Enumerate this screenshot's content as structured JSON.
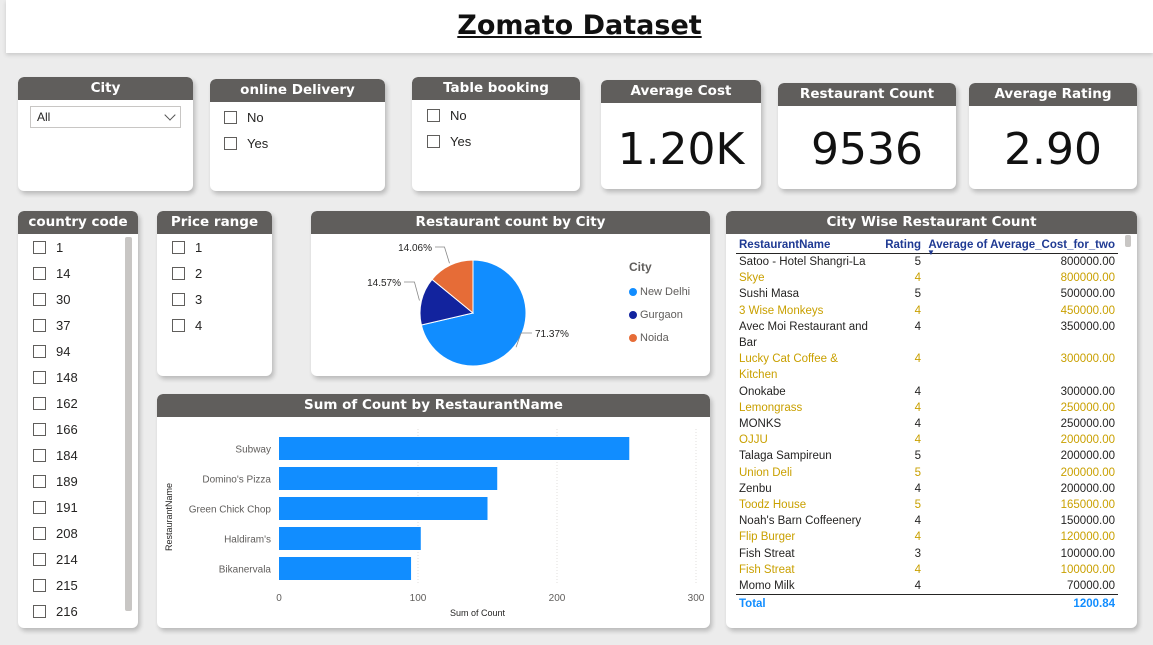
{
  "title": "Zomato Dataset",
  "slicers": {
    "city": {
      "title": "City",
      "selected": "All"
    },
    "online_delivery": {
      "title": "online Delivery",
      "options": [
        "No",
        "Yes"
      ]
    },
    "table_booking": {
      "title": "Table booking",
      "options": [
        "No",
        "Yes"
      ]
    },
    "country_code": {
      "title": "country code",
      "options": [
        "1",
        "14",
        "30",
        "37",
        "94",
        "148",
        "162",
        "166",
        "184",
        "189",
        "191",
        "208",
        "214",
        "215",
        "216"
      ]
    },
    "price_range": {
      "title": "Price range",
      "options": [
        "1",
        "2",
        "3",
        "4"
      ]
    }
  },
  "kpis": {
    "avg_cost": {
      "title": "Average Cost",
      "value": "1.20K"
    },
    "restaurant_count": {
      "title": "Restaurant Count",
      "value": "9536"
    },
    "avg_rating": {
      "title": "Average Rating",
      "value": "2.90"
    }
  },
  "colors": {
    "blue": "#118dff",
    "navy": "#12239e",
    "orange": "#e66c37",
    "gold": "#c9a000",
    "header": "#605e5c"
  },
  "chart_data": [
    {
      "type": "pie",
      "title": "Restaurant count by City",
      "legend_title": "City",
      "legend_position": "right",
      "categories": [
        "New Delhi",
        "Gurgaon",
        "Noida"
      ],
      "values": [
        71.37,
        14.57,
        14.06
      ],
      "labels": [
        "71.37%",
        "14.57%",
        "14.06%"
      ],
      "colors": [
        "#118dff",
        "#12239e",
        "#e66c37"
      ]
    },
    {
      "type": "bar",
      "orientation": "horizontal",
      "title": "Sum of Count by RestaurantName",
      "xlabel": "Sum of Count",
      "ylabel": "RestaurantName",
      "categories": [
        "Subway",
        "Domino's Pizza",
        "Green Chick Chop",
        "Haldiram's",
        "Bikanervala"
      ],
      "values": [
        252,
        157,
        150,
        102,
        95
      ],
      "xlim": [
        0,
        300
      ],
      "xticks": [
        "0",
        "100",
        "200",
        "300"
      ],
      "color": "#118dff"
    }
  ],
  "table": {
    "title": "City Wise Restaurant Count",
    "columns": [
      "RestaurantName",
      "Rating",
      "Average of Average_Cost_for_two"
    ],
    "rows": [
      [
        "Satoo - Hotel Shangri-La",
        "5",
        "800000.00"
      ],
      [
        "Skye",
        "4",
        "800000.00"
      ],
      [
        "Sushi Masa",
        "5",
        "500000.00"
      ],
      [
        "3 Wise Monkeys",
        "4",
        "450000.00"
      ],
      [
        "Avec Moi Restaurant and Bar",
        "4",
        "350000.00"
      ],
      [
        "Lucky Cat Coffee & Kitchen",
        "4",
        "300000.00"
      ],
      [
        "Onokabe",
        "4",
        "300000.00"
      ],
      [
        "Lemongrass",
        "4",
        "250000.00"
      ],
      [
        "MONKS",
        "4",
        "250000.00"
      ],
      [
        "OJJU",
        "4",
        "200000.00"
      ],
      [
        "Talaga Sampireun",
        "5",
        "200000.00"
      ],
      [
        "Union Deli",
        "5",
        "200000.00"
      ],
      [
        "Zenbu",
        "4",
        "200000.00"
      ],
      [
        "Toodz House",
        "5",
        "165000.00"
      ],
      [
        "Noah's Barn Coffeenery",
        "4",
        "150000.00"
      ],
      [
        "Flip Burger",
        "4",
        "120000.00"
      ],
      [
        "Fish Streat",
        "3",
        "100000.00"
      ],
      [
        "Fish Streat",
        "4",
        "100000.00"
      ],
      [
        "Momo Milk",
        "4",
        "70000.00"
      ]
    ],
    "total_label": "Total",
    "total_value": "1200.84"
  }
}
